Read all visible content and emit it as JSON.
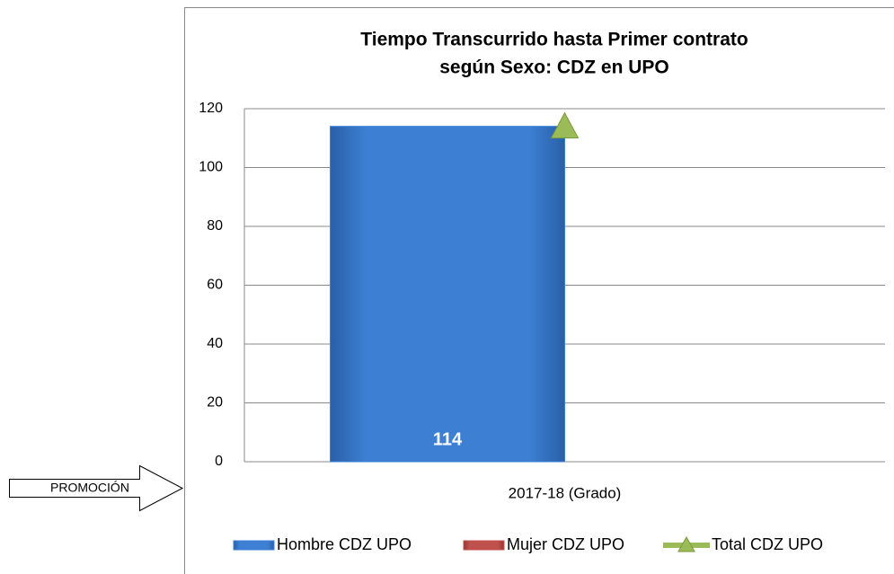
{
  "chart_data": {
    "type": "bar",
    "title": "Tiempo Transcurrido hasta Primer contrato",
    "subtitle": "según Sexo: CDZ en UPO",
    "categories": [
      "2017-18 (Grado)"
    ],
    "series": [
      {
        "name": "Hombre CDZ UPO",
        "color": "#3c7fd3",
        "values": [
          114
        ],
        "show_labels": true
      },
      {
        "name": "Mujer CDZ UPO",
        "color": "#c0504d",
        "values": [
          0
        ]
      },
      {
        "name": "Total CDZ UPO",
        "color": "#9bbb59",
        "type": "line",
        "values": [
          114
        ]
      }
    ],
    "ylim": [
      0,
      120
    ],
    "yticks": [
      0,
      20,
      40,
      60,
      80,
      100,
      120
    ],
    "grid": true,
    "legend": "bottom",
    "annotation": "PROMOCIÓN"
  }
}
